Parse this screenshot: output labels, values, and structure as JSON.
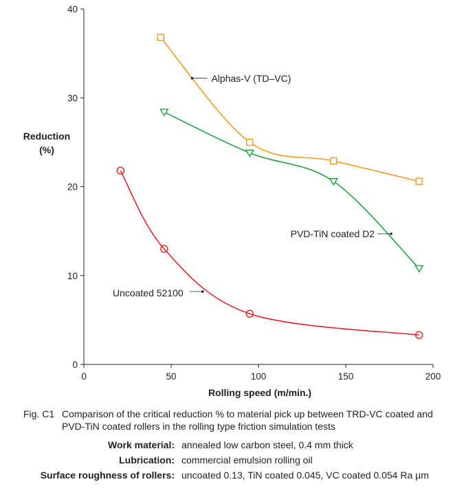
{
  "chart_data": {
    "type": "line",
    "xlabel": "Rolling speed (m/min.)",
    "ylabel": [
      "Reduction",
      "(%)"
    ],
    "xlim": [
      0,
      200
    ],
    "ylim": [
      0,
      40
    ],
    "xticks": [
      0,
      50,
      100,
      150,
      200
    ],
    "yticks": [
      0,
      10,
      20,
      30,
      40
    ],
    "grid": false,
    "series": [
      {
        "name": "Alphas-V (TD–VC)",
        "color": "#f39a1e",
        "marker": "square",
        "x": [
          44,
          95,
          143,
          192
        ],
        "y": [
          36.8,
          25.0,
          22.9,
          20.6
        ]
      },
      {
        "name": "PVD-TiN coated D2",
        "color": "#1fa13f",
        "marker": "triangle-down",
        "x": [
          46,
          95,
          143,
          192
        ],
        "y": [
          28.4,
          23.8,
          20.6,
          10.8
        ]
      },
      {
        "name": "Uncoated 52100",
        "color": "#e52329",
        "marker": "circle",
        "x": [
          21,
          46,
          95,
          192
        ],
        "y": [
          21.8,
          13.0,
          5.7,
          3.3
        ]
      }
    ],
    "annotations": [
      {
        "series": 0,
        "text": "Alphas-V (TD–VC)",
        "at": [
          62,
          32.2
        ]
      },
      {
        "series": 1,
        "text": "PVD-TiN coated D2",
        "at": [
          176,
          14.7
        ]
      },
      {
        "series": 2,
        "text": "Uncoated 52100",
        "at": [
          68,
          8.2
        ]
      }
    ]
  },
  "caption": {
    "fig_id": "Fig. C1",
    "text": "Comparison of the critical reduction % to material pick up between TRD-VC coated and PVD-TiN coated rollers in the rolling type friction simulation tests"
  },
  "specs": [
    {
      "label": "Work material:",
      "value": "annealed low carbon steel, 0.4 mm thick"
    },
    {
      "label": "Lubrication:",
      "value": "commercial emulsion rolling oil"
    },
    {
      "label": "Surface roughness of rollers:",
      "value": "uncoated 0.13, TiN coated 0.045, VC coated 0.054 Ra µm"
    }
  ]
}
